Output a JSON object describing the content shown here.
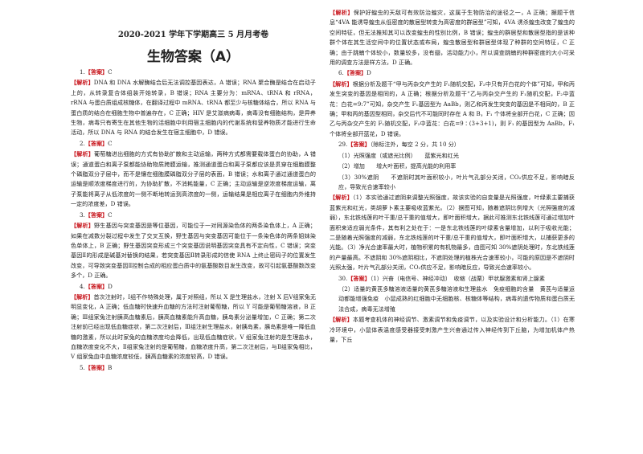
{
  "header": {
    "exam": "2020-2021 学年下学期高三 5 月月考卷",
    "title": "生物答案（A）"
  },
  "left": [
    {
      "kind": "answer",
      "num": "1.",
      "tag": "【答案】",
      "text": "C"
    },
    {
      "kind": "analysis",
      "tag": "【解析】",
      "text": "DNA 和 DNA 水解酶结合后无法调控基因表达，A 错误；RNA 聚合酶是结合在启动子上的，从转录复合体组装开始转录，B 错误；RNA 主要分为：mRNA、tRNA 和 rRNA，rRNA 与蛋白质组成核糖体，在翻译过程中 mRNA、tRNA 都至少与核糖体结合，所以 RNA 与蛋白质的结合在细胞生物中普遍存在，C 正确；HIV 是艾滋病病毒，病毒没有细胞结构，是异养生物，病毒只有寄生在其他生物的活细胞中利用宿主细胞内的代谢系统和营养物质才能进行生命活动，所以 DNA 与 RNA 的结合发生在宿主细胞中，D 错误。"
    },
    {
      "kind": "answer",
      "num": "2.",
      "tag": "【答案】",
      "text": "C"
    },
    {
      "kind": "analysis",
      "tag": "【解析】",
      "text": "葡萄糖进出细胞的方式有协助扩散和主动运输，两种方式都需要载体蛋白的协助，A 错误；通道蛋白和离子泵都能协助物质跨膜运输，推测通道蛋白和离子泵都应该是贯穿在细胞膜整个磷脂双分子层中，而不是镶在细胞膜磷脂双分子层的表面，B 错误；水和离子通过通道蛋白的运输是顺浓度梯度进行的，为协助扩散，不消耗能量，C 正确；主动运输是逆浓度梯度运输，离子泵能将离子从低浓度的一侧不断地转运到高浓度的一侧，运输结果是相应离子在细胞内外维持一定的浓度差，D 错误。"
    },
    {
      "kind": "answer",
      "num": "3.",
      "tag": "【答案】",
      "text": "C"
    },
    {
      "kind": "analysis",
      "tag": "【解析】",
      "text": "野生基因与突变基因是等位基因，可能位于一对同源染色体的两条染色体上，A 正确；如果在减数分裂过程中发生了交叉互换，野生基因与突变基因可能位于一条染色体的两条姐妹染色单体上，B 正确；野生基因突变形成三个突变基因说明基因突变具有不定向性，C 错误；突变基因Ⅱ的形成是碱基对替换的结果，若突变基因Ⅱ转录形成的信使 RNA 上终止密码子的位置发生改变，可导致突变基因Ⅱ控制合成的相应蛋白质中的氨基酸数目发生改变，故可引起氨基酸数改变多个，D 正确。"
    },
    {
      "kind": "answer",
      "num": "4.",
      "tag": "【答案】",
      "text": "D"
    },
    {
      "kind": "analysis",
      "tag": "【解析】",
      "text": "首次注射时，Ⅰ组不作特殊处理，属于对照组，所以 X 是生理盐水，注射 X 后Ⅴ组家兔无明显变化，A 正确；低血糖时快速升血糖的方法时注射葡萄糖，所以 Y 可能是葡萄糖溶液，B 正确；Ⅲ组家兔注射胰高血糖素后，胰高血糖素能升高血糖，胰岛素分泌量增加，C 正确；第二次注射前已经出现低血糖症状，第二次注射后，Ⅲ组注射生理盐水，射胰岛素，胰岛素是唯一降低血糖的激素，所以此时家兔的血糖浓度均会降低，出现低血糖症状，V 组家兔注射的是生理盐水，血糖浓度变化不大，Ⅱ组家兔注射的是葡萄糖，血糖浓度升高，第二次注射后，与Ⅱ组家兔相比，V 组家兔血中血糖浓度较低，胰高血糖素的浓度较高，D 错误。"
    },
    {
      "kind": "answer",
      "num": "5.",
      "tag": "【答案】",
      "text": "B"
    }
  ],
  "right": [
    {
      "kind": "analysis",
      "tag": "【解析】",
      "text": "保护好蝗虫的天敌可有效防治蝗灾，这属于生物防治的途径之一，A 正确；据题干信息“4VA 能诱导蝗虫从低密度的散居型转变为高密度的群居型”可知，4VA 诱杀蝗虫改变了蝗虫的空间特征，但无法推知其可以改变蝗虫的性别比例，B 错误；蝗虫的群居型和散居型指的是该种群个体在其生活空间中的位置状态或布局，蝗虫散居型和群居型体现了种群的空间特征，C 正确；由于跳蝻个体较小，数量较多，没有翅，活动能力小，所以调查跳蝻的种群密度的大小可采用的调查方法是样方法，D 正确。"
    },
    {
      "kind": "answer",
      "num": "6.",
      "tag": "【答案】",
      "text": "D"
    },
    {
      "kind": "analysis",
      "tag": "【解析】",
      "text": "根据分析及题干“甲与丙杂交产生的 F₁随机交配，F₂中只有开白花的个体”可知，甲和丙发生突变的基因是相同的，A 正确；根据分析及题干“乙与丙杂交产生的 F₁随机交配，F₂中蓝花：白花=9:7”可知，杂交产生 F₁基因型为 AaBb，则乙和丙发生突变的基因是不相同的，B 正确；甲和丙的基因型相同，杂交后代不可能同时存在 A 和 B，F₁ 个体将全部开白花，C 正确；因乙与丙杂交产生的 F₁随机交配，F₂中蓝花：白花=9∶(3+3+1)，则 F₁ 的基因型为 AaBb，F₁ 个体将全部开蓝花，D 错误。"
    },
    {
      "kind": "answer",
      "num": "29.",
      "tag": "【答案】",
      "text": "（除标注外，每空 2 分，共 10 分）"
    },
    {
      "kind": "plain",
      "text": "（1）光照强度（或遮光比例）　　蓝紫光和红光"
    },
    {
      "kind": "plain",
      "text": "（2）增加　　增大叶面积，提高光能的利用率"
    },
    {
      "kind": "plain",
      "text": "（3）30%遮阴　　不遮阴时其叶面积较小，叶片气孔部分关闭，CO₂供应不足，影响暗反应，导致光合速率较小"
    },
    {
      "kind": "analysis",
      "tag": "【解析】",
      "text": "（1）本实验通过遮阴来调整光照强度，故该实验的自变量是光照强度，叶绿素主要捕获蓝紫光和红光，类胡萝卜素主要吸收蓝紫光。（2）据图可知，随着遮阴比例增大（光照强度的减弱），东北铁线莲的叶干重/总干重的值增大，即叶面积增大，据此可推测东北铁线莲可通过增加叶面积来适应弱光条件，其有利之处在于：一是东北铁线莲的叶绿素含量增加，以利于吸收光能；二是随着光照强度的减弱，东北铁线莲的叶干重/总干重的值增大，即叶面积增大，以捕获更多的光能。（3）净光合速率最大时，植物积累的有机物最多，由图可知 30%遮阴处理时，东北铁线莲的产量最高。不遮阴和 30%遮阴相比，不遮阴处理的植株光合速率较小，可能的原因是不遮阴时光照太强，叶片气孔部分关闭，CO₂供应不足，影响暗反应，导致光合速率较小。"
    },
    {
      "kind": "answer",
      "num": "30.",
      "tag": "【答案】",
      "text": "（1）兴奋（电信号、神经冲动）　收缩（战栗）甲状腺激素和肾上腺素"
    },
    {
      "kind": "plain",
      "text": "（2）适量的黄芪多糖溶液适量的黄芪多糖溶液和生理盐水　免疫细胞的含量　黄芪与适量运动都能增强免疫　小鼠成熟的红细胞中无细胞核、核糖体等结构，病毒的遗传物质和蛋白质无法合成，病毒无法增殖"
    },
    {
      "kind": "analysis",
      "tag": "【解析】",
      "text": "本题考查机体的神经调节、激素调节和免疫调节，以及实验设计和分析能力。（1）在寒冷环境中，小鼠体表温度感受器接受刺激产生兴奋通过传入神经传到下丘脑，为增加机体产热量，下丘"
    }
  ]
}
